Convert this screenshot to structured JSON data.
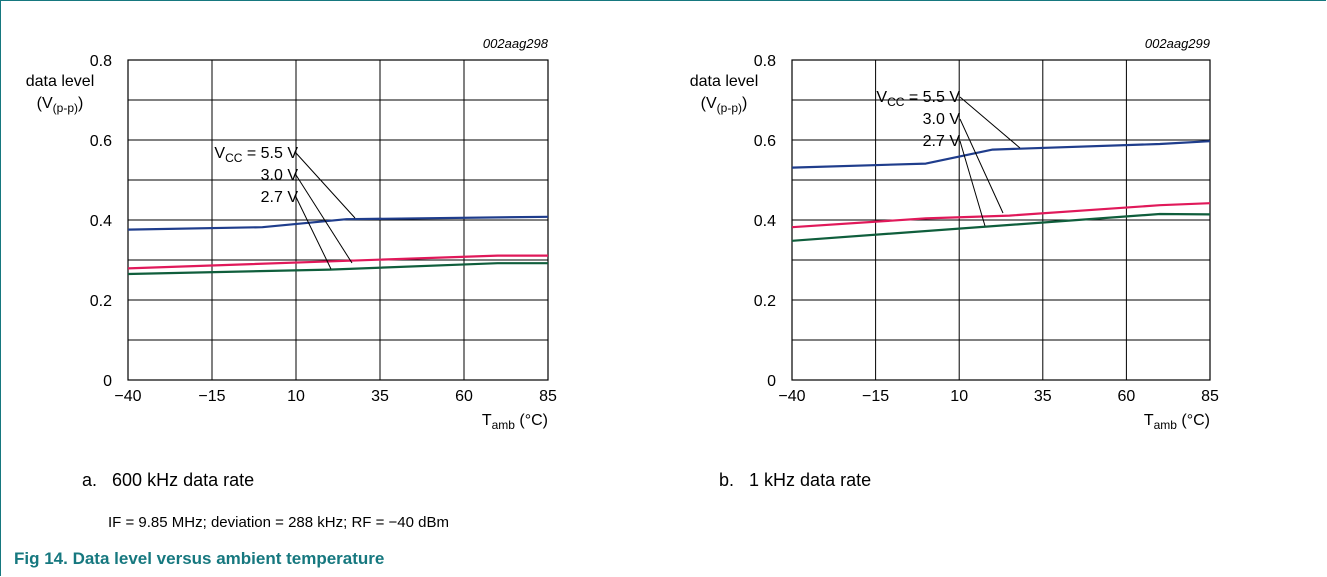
{
  "colors": {
    "blue": "#1f3d8c",
    "red": "#e0195a",
    "green": "#0f5e3c",
    "frame": "#16787f"
  },
  "chart_data": [
    {
      "type": "line",
      "id_label": "002aag298",
      "caption_letter": "a.",
      "caption": "600 kHz data rate",
      "xlabel": "T",
      "xlabel_sub": "amb",
      "xlabel_unit": " (°C)",
      "ylabel_line1": "data level",
      "ylabel_line2": "(V",
      "ylabel_sub": "(p-p)",
      "ylabel_close": ")",
      "xlim": [
        -40,
        85
      ],
      "ylim": [
        0,
        0.8
      ],
      "xticks": [
        -40,
        -15,
        10,
        35,
        60,
        85
      ],
      "xtick_labels": [
        "−40",
        "−15",
        "10",
        "35",
        "60",
        "85"
      ],
      "yticks": [
        0,
        0.2,
        0.4,
        0.6,
        0.8
      ],
      "ytick_labels": [
        "0",
        "0.2",
        "0.4",
        "0.6",
        "0.8"
      ],
      "grid": true,
      "series": [
        {
          "name": "5.5 V",
          "color": "blue",
          "points": [
            [
              -40,
              0.376
            ],
            [
              0,
              0.382
            ],
            [
              25,
              0.402
            ],
            [
              85,
              0.408
            ]
          ]
        },
        {
          "name": "3.0 V",
          "color": "red",
          "points": [
            [
              -40,
              0.279
            ],
            [
              25,
              0.298
            ],
            [
              70,
              0.311
            ],
            [
              85,
              0.311
            ]
          ]
        },
        {
          "name": "2.7 V",
          "color": "green",
          "points": [
            [
              -40,
              0.265
            ],
            [
              20,
              0.276
            ],
            [
              70,
              0.292
            ],
            [
              85,
              0.292
            ]
          ]
        }
      ],
      "annotations": {
        "vcc_prefix": "V",
        "vcc_sub": "CC",
        "vcc_suffix": " = 5.5 V",
        "l30": "3.0 V",
        "l27": "2.7 V"
      }
    },
    {
      "type": "line",
      "id_label": "002aag299",
      "caption_letter": "b.",
      "caption": "1 kHz data rate",
      "xlabel": "T",
      "xlabel_sub": "amb",
      "xlabel_unit": " (°C)",
      "ylabel_line1": "data level",
      "ylabel_line2": "(V",
      "ylabel_sub": "(p-p)",
      "ylabel_close": ")",
      "xlim": [
        -40,
        85
      ],
      "ylim": [
        0,
        0.8
      ],
      "xticks": [
        -40,
        -15,
        10,
        35,
        60,
        85
      ],
      "xtick_labels": [
        "−40",
        "−15",
        "10",
        "35",
        "60",
        "85"
      ],
      "yticks": [
        0,
        0.2,
        0.4,
        0.6,
        0.8
      ],
      "ytick_labels": [
        "0",
        "0.2",
        "0.4",
        "0.6",
        "0.8"
      ],
      "grid": true,
      "series": [
        {
          "name": "5.5 V",
          "color": "blue",
          "points": [
            [
              -40,
              0.531
            ],
            [
              0,
              0.541
            ],
            [
              20,
              0.576
            ],
            [
              70,
              0.59
            ],
            [
              85,
              0.597
            ]
          ]
        },
        {
          "name": "3.0 V",
          "color": "red",
          "points": [
            [
              -40,
              0.382
            ],
            [
              0,
              0.404
            ],
            [
              25,
              0.411
            ],
            [
              70,
              0.437
            ],
            [
              85,
              0.442
            ]
          ]
        },
        {
          "name": "2.7 V",
          "color": "green",
          "points": [
            [
              -40,
              0.348
            ],
            [
              70,
              0.415
            ],
            [
              85,
              0.414
            ]
          ]
        }
      ],
      "annotations": {
        "vcc_prefix": "V",
        "vcc_sub": "CC",
        "vcc_suffix": " = 5.5 V",
        "l30": "3.0 V",
        "l27": "2.7 V"
      }
    }
  ],
  "conditions_note": "IF = 9.85 MHz; deviation = 288 kHz; RF = −40 dBm",
  "figure_title": "Fig 14.   Data level versus ambient temperature"
}
